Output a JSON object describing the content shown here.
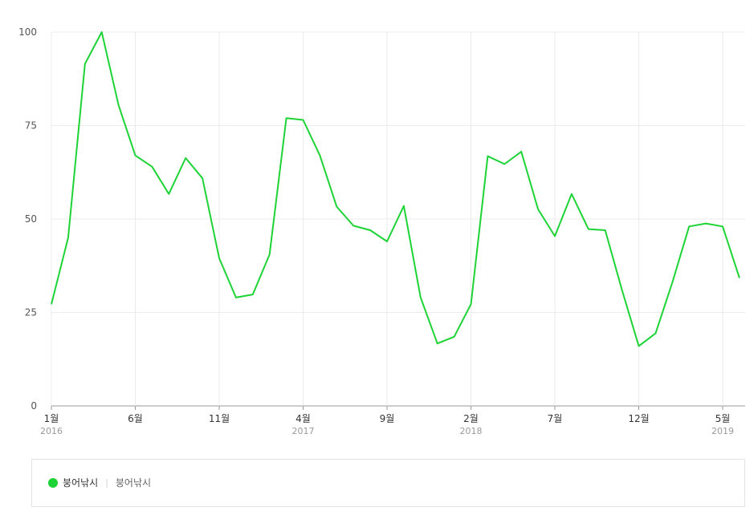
{
  "colors": {
    "series": "#1ed336",
    "grid": "#ebebeb",
    "axis": "#999999"
  },
  "chart_data": {
    "type": "line",
    "title": "",
    "xlabel": "",
    "ylabel": "",
    "ylim": [
      0,
      100
    ],
    "yticks": [
      "0",
      "25",
      "50",
      "75",
      "100"
    ],
    "x_tick_labels": [
      {
        "month": "1월",
        "year": "2016"
      },
      {
        "month": "6월",
        "year": ""
      },
      {
        "month": "11월",
        "year": ""
      },
      {
        "month": "4월",
        "year": "2017"
      },
      {
        "month": "9월",
        "year": ""
      },
      {
        "month": "2월",
        "year": "2018"
      },
      {
        "month": "7월",
        "year": ""
      },
      {
        "month": "12월",
        "year": ""
      },
      {
        "month": "5월",
        "year": "2019"
      }
    ],
    "x": [
      "2016-01",
      "2016-02",
      "2016-03",
      "2016-04",
      "2016-05",
      "2016-06",
      "2016-07",
      "2016-08",
      "2016-09",
      "2016-10",
      "2016-11",
      "2016-12",
      "2017-01",
      "2017-02",
      "2017-03",
      "2017-04",
      "2017-05",
      "2017-06",
      "2017-07",
      "2017-08",
      "2017-09",
      "2017-10",
      "2017-11",
      "2017-12",
      "2018-01",
      "2018-02",
      "2018-03",
      "2018-04",
      "2018-05",
      "2018-06",
      "2018-07",
      "2018-08",
      "2018-09",
      "2018-10",
      "2018-11",
      "2018-12",
      "2019-01",
      "2019-02",
      "2019-03",
      "2019-04",
      "2019-05",
      "2019-06"
    ],
    "series": [
      {
        "name": "붕어낚시",
        "values": [
          27.2,
          45.0,
          91.5,
          100.0,
          80.5,
          67.0,
          64.0,
          56.7,
          66.3,
          60.9,
          39.5,
          29.0,
          29.8,
          40.5,
          77.0,
          76.5,
          67.0,
          53.3,
          48.2,
          47.0,
          44.0,
          53.5,
          29.0,
          16.7,
          18.5,
          27.2,
          66.8,
          64.7,
          68.0,
          52.6,
          45.4,
          56.7,
          47.3,
          47.0,
          31.0,
          16.0,
          19.4,
          33.0,
          48.0,
          48.8,
          48.0,
          34.2
        ]
      }
    ]
  },
  "legend": {
    "name": "붕어낚시",
    "description": "붕어낚시"
  }
}
